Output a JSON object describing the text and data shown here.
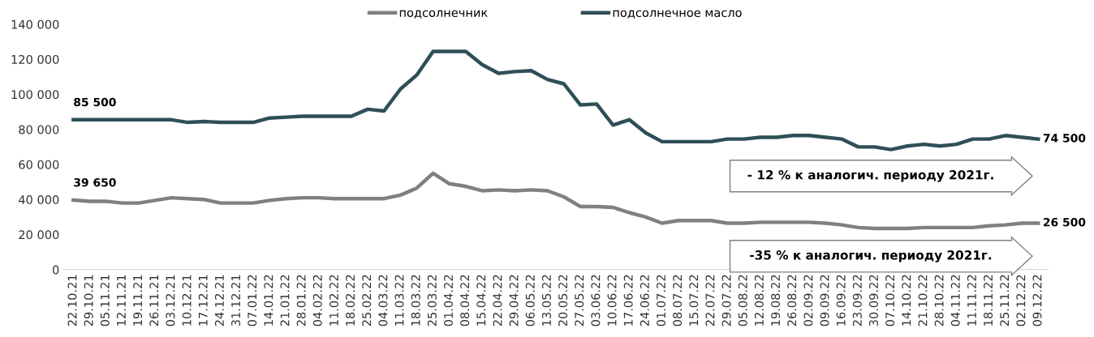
{
  "chart_data": {
    "type": "line",
    "categories": [
      "22.10.21",
      "29.10.21",
      "05.11.21",
      "12.11.21",
      "19.11.21",
      "26.11.21",
      "03.12.21",
      "10.12.21",
      "17.12.21",
      "24.12.21",
      "31.12.21",
      "07.01.22",
      "14.01.22",
      "21.01.22",
      "28.01.22",
      "04.02.22",
      "11.02.22",
      "18.02.22",
      "25.02.22",
      "04.03.22",
      "11.03.22",
      "18.03.22",
      "25.03.22",
      "01.04.22",
      "08.04.22",
      "15.04.22",
      "22.04.22",
      "29.04.22",
      "06.05.22",
      "13.05.22",
      "20.05.22",
      "27.05.22",
      "03.06.22",
      "10.06.22",
      "17.06.22",
      "24.06.22",
      "01.07.22",
      "08.07.22",
      "15.07.22",
      "22.07.22",
      "29.07.22",
      "05.08.22",
      "12.08.22",
      "19.08.22",
      "26.08.22",
      "02.09.22",
      "09.09.22",
      "16.09.22",
      "23.09.22",
      "30.09.22",
      "07.10.22",
      "14.10.22",
      "21.10.22",
      "28.10.22",
      "04.11.22",
      "11.11.22",
      "18.11.22",
      "25.11.22",
      "02.12.22",
      "09.12.22"
    ],
    "series": [
      {
        "name": "подсолнечник",
        "color": "#808080",
        "values": [
          39650,
          39000,
          39000,
          38000,
          38000,
          39500,
          41000,
          40500,
          40000,
          38000,
          38000,
          38000,
          39500,
          40500,
          41000,
          41000,
          40500,
          40500,
          40500,
          40500,
          42500,
          46500,
          55000,
          49000,
          47500,
          45000,
          45500,
          45000,
          45500,
          45000,
          41500,
          36000,
          36000,
          35500,
          32500,
          30000,
          26500,
          28000,
          28000,
          28000,
          26500,
          26500,
          27000,
          27000,
          27000,
          27000,
          26500,
          25500,
          24000,
          23500,
          23500,
          23500,
          24000,
          24000,
          24000,
          24000,
          25000,
          25500,
          26500,
          26500
        ]
      },
      {
        "name": "подсолнечное масло",
        "color": "#2f4f57",
        "values": [
          85500,
          85500,
          85500,
          85500,
          85500,
          85500,
          85500,
          84000,
          84500,
          84000,
          84000,
          84000,
          86500,
          87000,
          87500,
          87500,
          87500,
          87500,
          91500,
          90500,
          103000,
          111000,
          124500,
          124500,
          124500,
          117000,
          112000,
          113000,
          113500,
          108500,
          106000,
          94000,
          94500,
          82500,
          85500,
          78000,
          73000,
          73000,
          73000,
          73000,
          74500,
          74500,
          75500,
          75500,
          76500,
          76500,
          75500,
          74500,
          70000,
          70000,
          68500,
          70500,
          71500,
          70500,
          71500,
          74500,
          74500,
          76500,
          75500,
          74500
        ]
      }
    ],
    "ylim": [
      0,
      140000
    ],
    "yticks": [
      {
        "value": 0,
        "label": "0"
      },
      {
        "value": 20000,
        "label": "20 000"
      },
      {
        "value": 40000,
        "label": "40 000"
      },
      {
        "value": 60000,
        "label": "60 000"
      },
      {
        "value": 80000,
        "label": "80 000"
      },
      {
        "value": 100000,
        "label": "100 000"
      },
      {
        "value": 120000,
        "label": "120 000"
      },
      {
        "value": 140000,
        "label": "140 000"
      }
    ],
    "grid": false,
    "legend": "top",
    "marker": "none",
    "line_style": "solid",
    "annotations": [
      {
        "text": "85 500",
        "x": "22.10.21",
        "y": 85500
      },
      {
        "text": "39 650",
        "x": "22.10.21",
        "y": 39650
      },
      {
        "text": "74 500",
        "x": "09.12.22",
        "y": 74500
      },
      {
        "text": "26 500",
        "x": "09.12.22",
        "y": 26500
      },
      "- 12 % к аналогич. периоду 2021г.",
      "-35 % к аналогич. периоду 2021г."
    ]
  }
}
